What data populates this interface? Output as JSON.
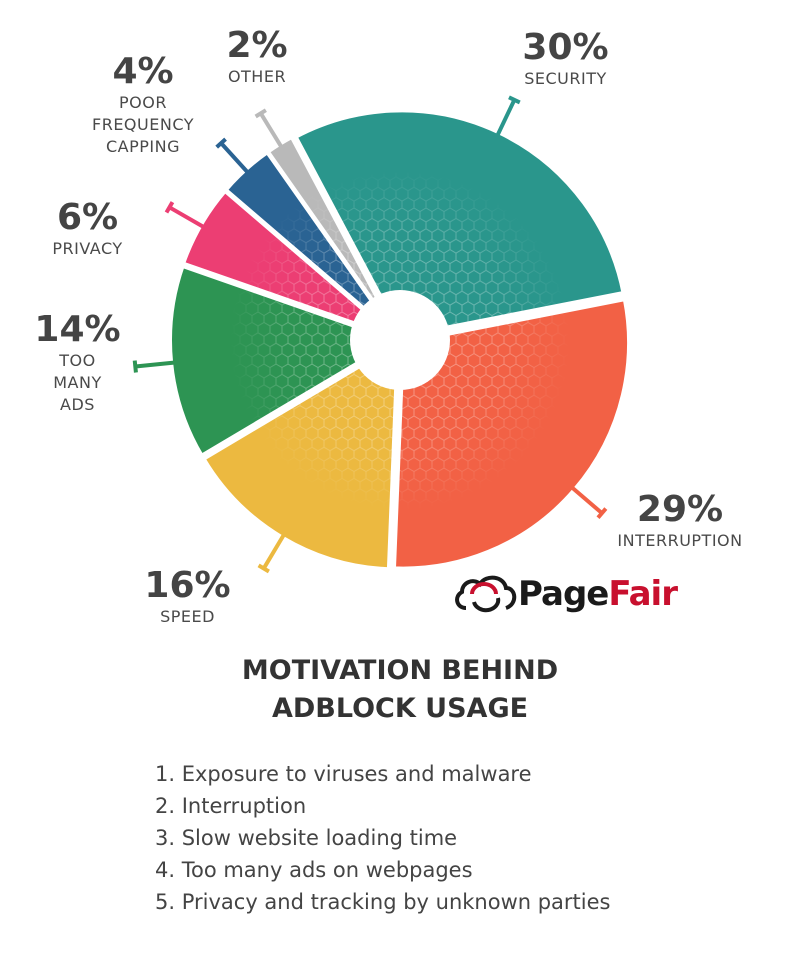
{
  "chart_data": {
    "type": "pie",
    "title": "MOTIVATION BEHIND ADBLOCK USAGE",
    "slices": [
      {
        "label": "SECURITY",
        "value": 30,
        "display": "30%",
        "color": "#2a968c"
      },
      {
        "label": "INTERRUPTION",
        "value": 29,
        "display": "29%",
        "color": "#f26145"
      },
      {
        "label": "SPEED",
        "value": 16,
        "display": "16%",
        "color": "#ecb940"
      },
      {
        "label": "TOO\nMANY\nADS",
        "value": 14,
        "display": "14%",
        "color": "#2d9453"
      },
      {
        "label": "PRIVACY",
        "value": 6,
        "display": "6%",
        "color": "#ec3e73"
      },
      {
        "label": "POOR\nFREQUENCY\nCAPPING",
        "value": 4,
        "display": "4%",
        "color": "#2a6393"
      },
      {
        "label": "OTHER",
        "value": 2,
        "display": "2%",
        "color": "#b9b9b9"
      }
    ],
    "donut": true
  },
  "logo": {
    "text_a": "Page",
    "text_b": "Fair",
    "color_a": "#1a1a1a",
    "color_b": "#c8102e"
  },
  "title_lines": [
    "MOTIVATION BEHIND",
    "ADBLOCK USAGE"
  ],
  "reasons": [
    "1. Exposure to viruses and malware",
    "2. Interruption",
    "3. Slow website loading time",
    "4. Too many ads on webpages",
    "5. Privacy and tracking by unknown parties"
  ]
}
